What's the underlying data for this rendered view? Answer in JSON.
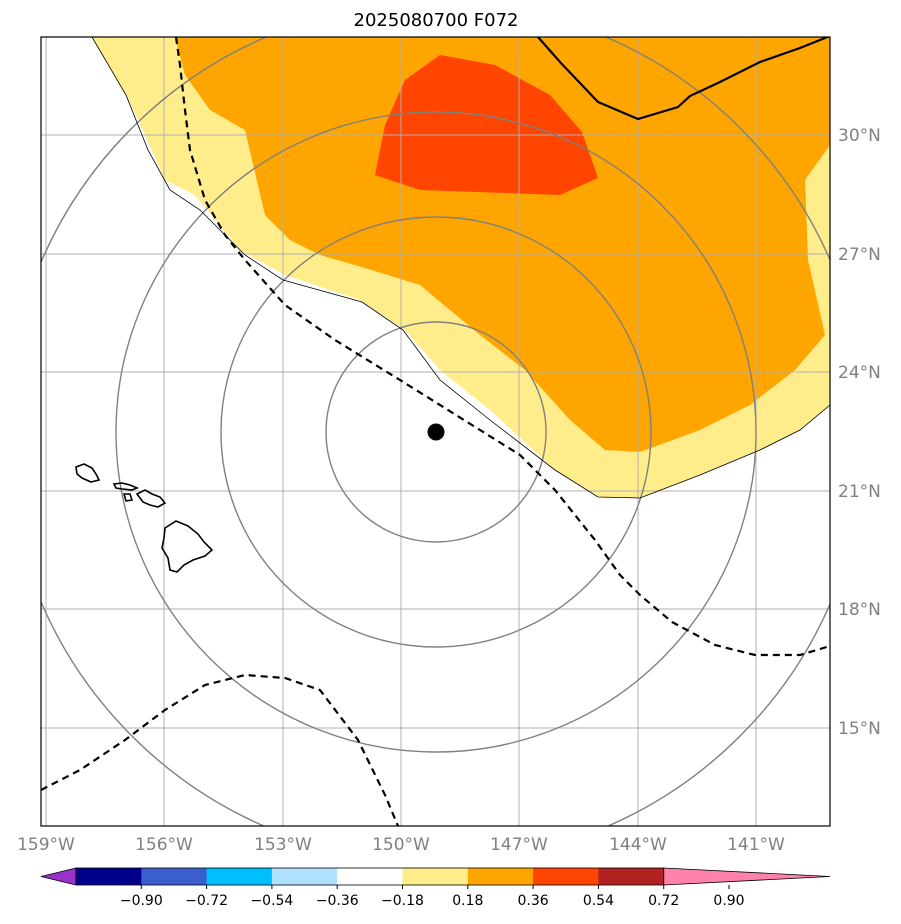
{
  "title": "2025080700 F072",
  "map": {
    "lon_labels": [
      "159°W",
      "156°W",
      "153°W",
      "150°W",
      "147°W",
      "144°W",
      "141°W"
    ],
    "lat_labels": [
      "30°N",
      "27°N",
      "24°N",
      "21°N",
      "18°N",
      "15°N"
    ],
    "center_marker": {
      "lon": -149.1,
      "lat": 22.4
    }
  },
  "colorbar": {
    "ticks": [
      "−0.90",
      "−0.72",
      "−0.54",
      "−0.36",
      "−0.18",
      "0.18",
      "0.36",
      "0.54",
      "0.72",
      "0.90"
    ],
    "colors": [
      "#9932cc",
      "#00008b",
      "#3a5fcd",
      "#00bfff",
      "#b0e2ff",
      "#ffffff",
      "#ffec8b",
      "#ffa500",
      "#ff4500",
      "#b22222",
      "#ff82ab"
    ]
  },
  "colors": {
    "grid": "#b0b0b0",
    "range_rings": "#808080",
    "coast": "#000000",
    "field_low": "#ffec8b",
    "field_mid": "#ffa500",
    "field_high": "#ff4500"
  }
}
